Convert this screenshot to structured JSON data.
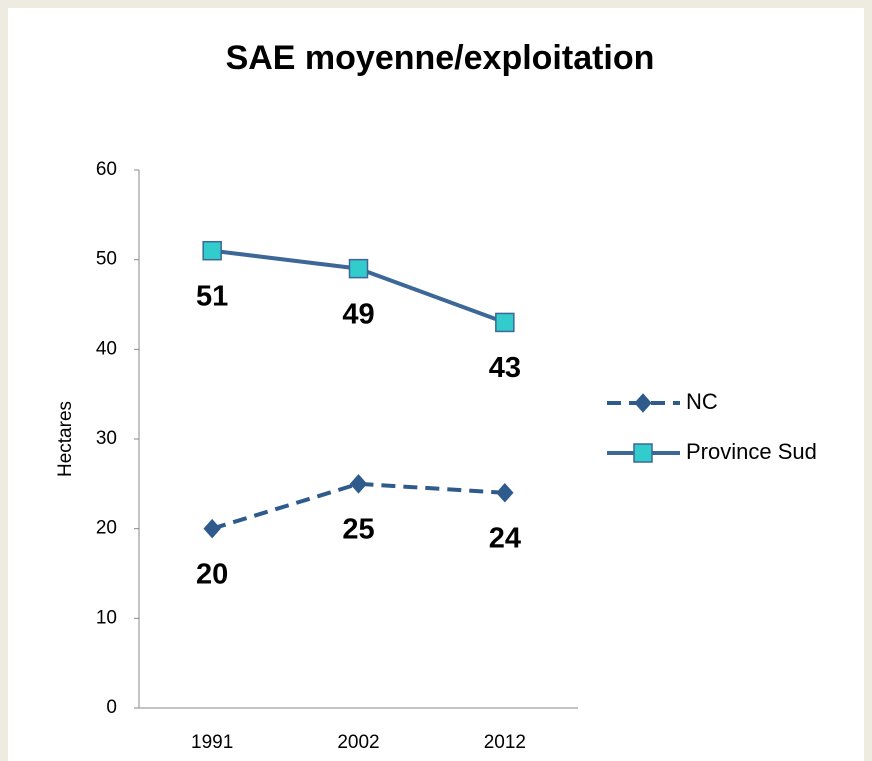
{
  "chart_data": {
    "type": "line",
    "title": "SAE moyenne/exploitation",
    "y_label": "Hectares",
    "categories": [
      "1991",
      "2002",
      "2012"
    ],
    "series": [
      {
        "name": "NC",
        "color": "#2e5a8c",
        "dash": true,
        "marker": "diamond",
        "marker_color": "#2e5a8c",
        "values": [
          20,
          25,
          24
        ]
      },
      {
        "name": "Province Sud",
        "color": "#3c6796",
        "dash": false,
        "marker": "square",
        "marker_color": "#33cccc",
        "values": [
          51,
          49,
          43
        ]
      }
    ],
    "ylim": [
      0,
      60
    ],
    "yticks": [
      0,
      10,
      20,
      30,
      40,
      50,
      60
    ],
    "grid": false,
    "legend": "right"
  }
}
